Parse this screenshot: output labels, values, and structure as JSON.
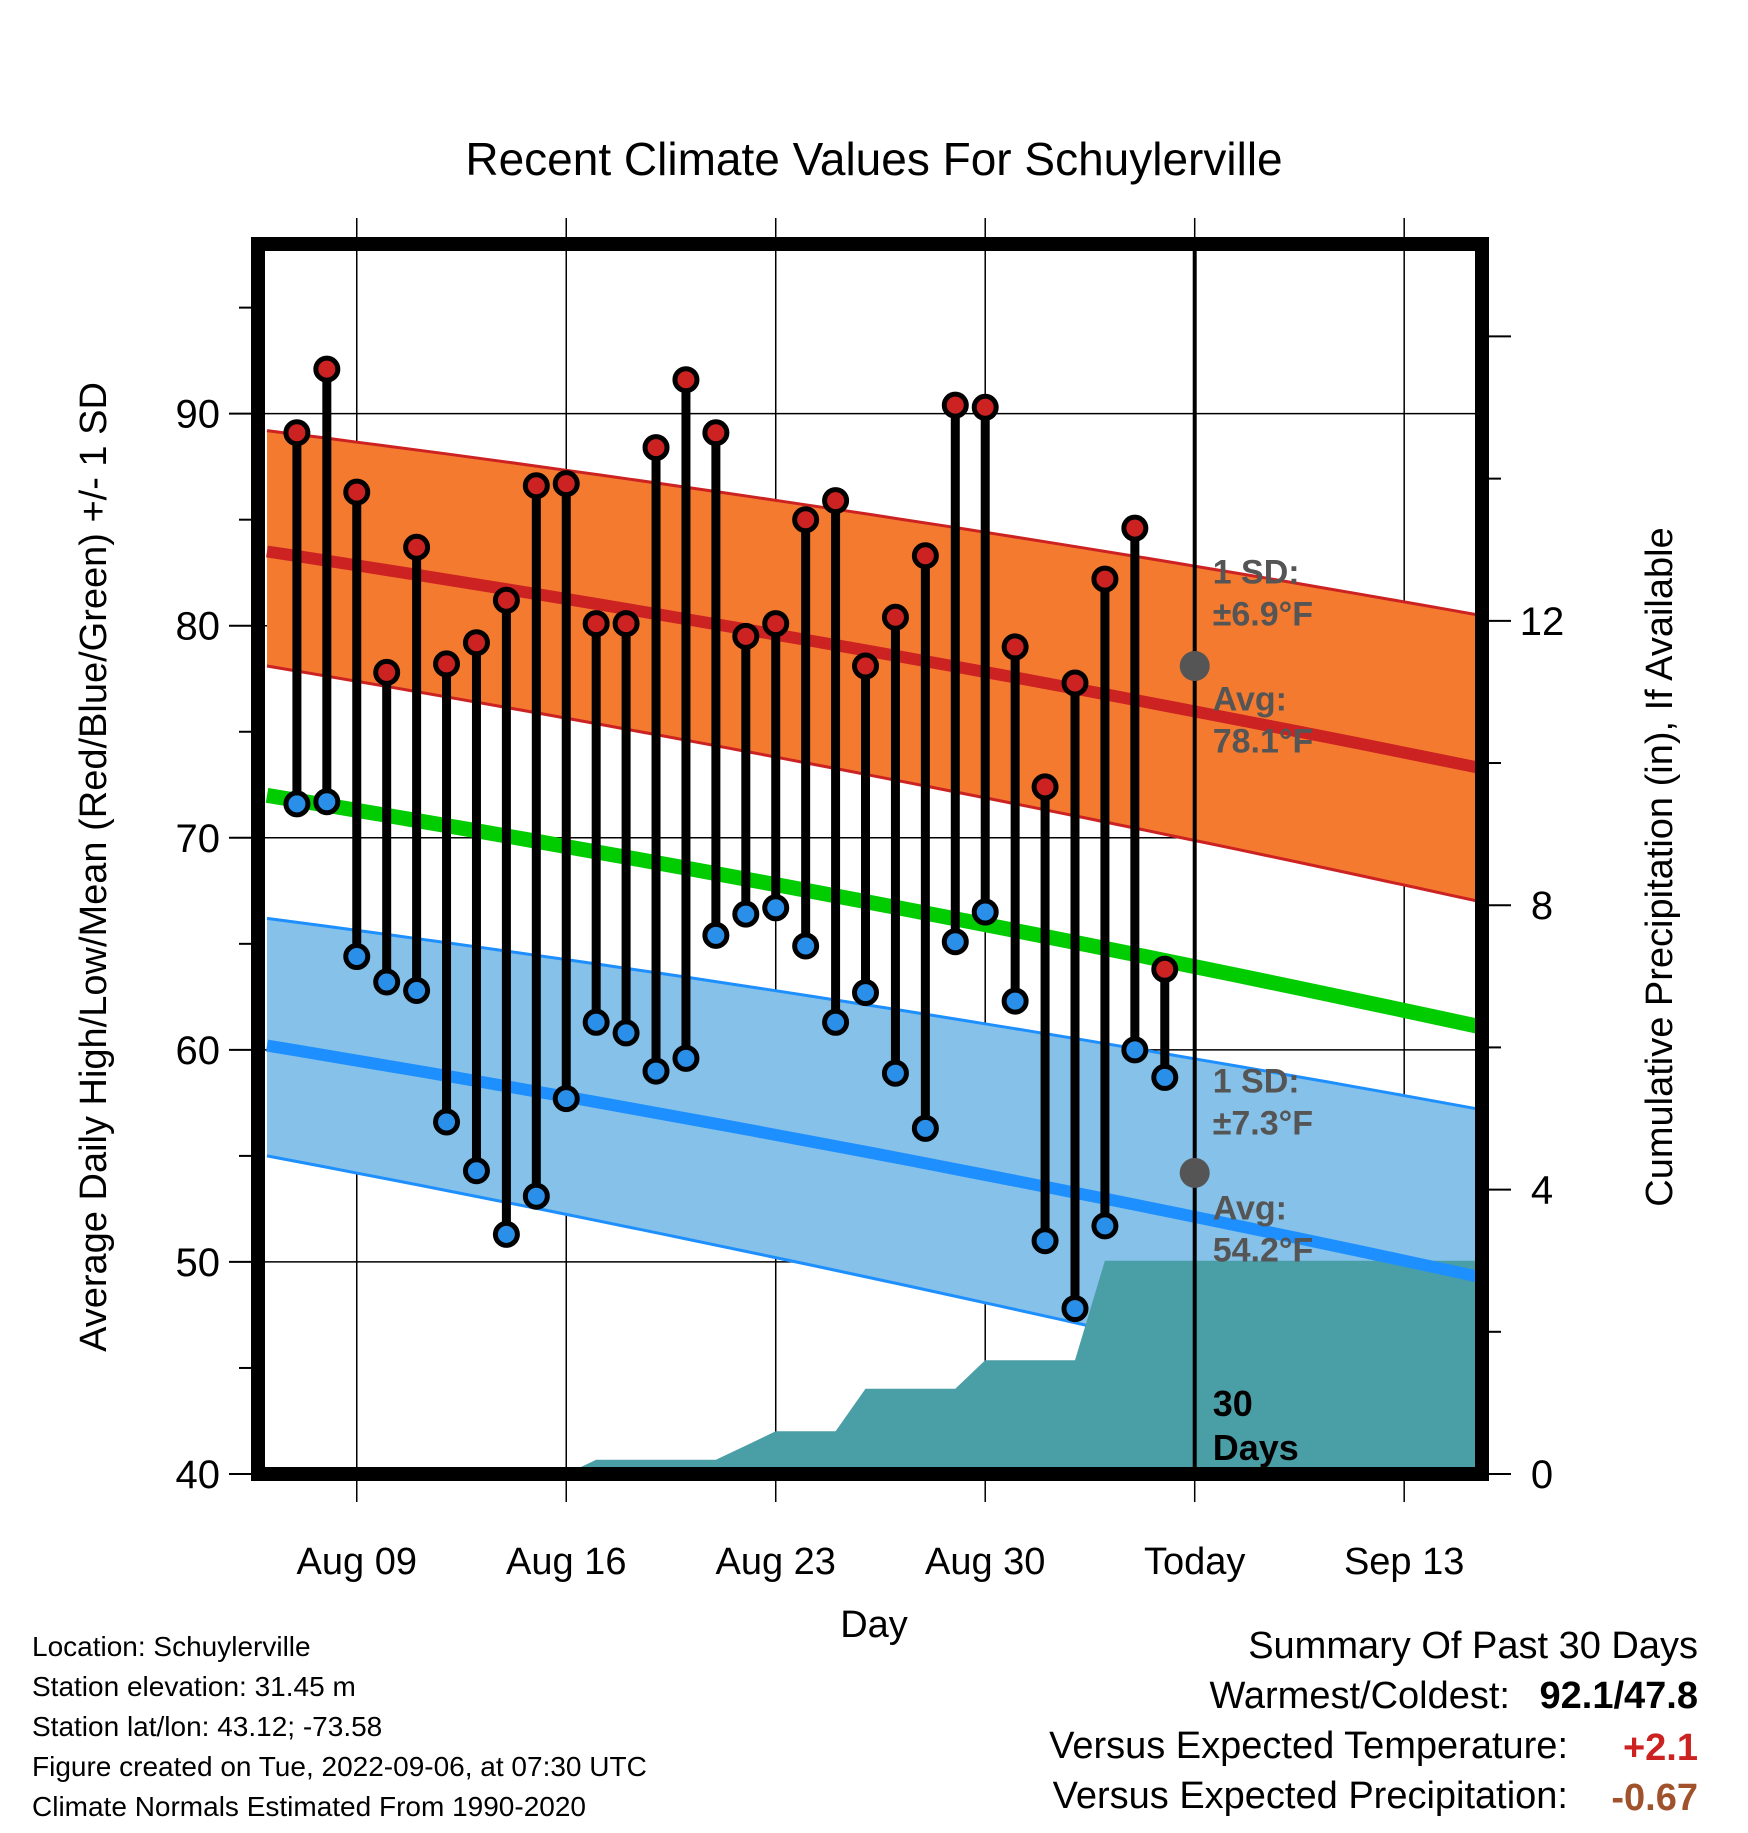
{
  "chart_data": {
    "type": "line",
    "title": "Recent Climate Values For Schuylerville",
    "xlabel": "Day",
    "ylabel": "Average Daily High/Low/Mean (Red/Blue/Green) +/- 1 SD",
    "y2label": "Cumulative Precipitation (in), If Available",
    "ylim": [
      40,
      98
    ],
    "y2lim": [
      0,
      17.3
    ],
    "yticks": [
      40,
      50,
      60,
      70,
      80,
      90
    ],
    "y2ticks": [
      0,
      4,
      8,
      12
    ],
    "xticks": [
      {
        "day": 9,
        "label": "Aug 09"
      },
      {
        "day": 16,
        "label": "Aug 16"
      },
      {
        "day": 23,
        "label": "Aug 23"
      },
      {
        "day": 30,
        "label": "Aug 30"
      },
      {
        "day": 37,
        "label": "Today"
      },
      {
        "day": 44,
        "label": "Sep 13"
      }
    ],
    "xlim": [
      5.7,
      46.6
    ],
    "today_day": 37,
    "grid": true,
    "days": [
      "Aug 07",
      "Aug 08",
      "Aug 09",
      "Aug 10",
      "Aug 11",
      "Aug 12",
      "Aug 13",
      "Aug 14",
      "Aug 15",
      "Aug 16",
      "Aug 17",
      "Aug 18",
      "Aug 19",
      "Aug 20",
      "Aug 21",
      "Aug 22",
      "Aug 23",
      "Aug 24",
      "Aug 25",
      "Aug 26",
      "Aug 27",
      "Aug 28",
      "Aug 29",
      "Aug 30",
      "Aug 31",
      "Sep 01",
      "Sep 02",
      "Sep 03",
      "Sep 04",
      "Sep 05"
    ],
    "day_index": [
      7,
      8,
      9,
      10,
      11,
      12,
      13,
      14,
      15,
      16,
      17,
      18,
      19,
      20,
      21,
      22,
      23,
      24,
      25,
      26,
      27,
      28,
      29,
      30,
      31,
      32,
      33,
      34,
      35,
      36
    ],
    "series": [
      {
        "name": "High",
        "color": "#cc2222",
        "values": [
          89.1,
          92.1,
          86.3,
          77.8,
          83.7,
          78.2,
          79.2,
          81.2,
          86.6,
          86.7,
          80.1,
          80.1,
          88.4,
          91.6,
          89.1,
          79.5,
          80.1,
          85.0,
          85.9,
          78.1,
          80.4,
          83.3,
          90.4,
          90.3,
          79.0,
          72.4,
          77.3,
          82.2,
          84.6,
          63.8
        ]
      },
      {
        "name": "Low",
        "color": "#2a8fe8",
        "values": [
          71.6,
          71.7,
          64.4,
          63.2,
          62.8,
          56.6,
          54.3,
          51.3,
          53.1,
          57.7,
          61.3,
          60.8,
          59.0,
          59.6,
          65.4,
          66.4,
          66.7,
          64.9,
          61.3,
          62.7,
          58.9,
          56.3,
          65.1,
          66.5,
          62.3,
          51.0,
          47.8,
          51.7,
          60.0,
          58.7
        ]
      }
    ],
    "normals": {
      "x": [
        6,
        46.5
      ],
      "high_mean": [
        83.5,
        74.8
      ],
      "high_upper": [
        89.2,
        82.0
      ],
      "high_lower": [
        78.1,
        68.5
      ],
      "mean": [
        72.0,
        62.6
      ],
      "low_mean": [
        60.2,
        50.8
      ],
      "low_upper": [
        66.2,
        58.7
      ],
      "low_lower": [
        55.0,
        44.2
      ]
    },
    "precip": {
      "x": [
        6,
        16,
        17,
        21,
        22,
        23,
        25,
        26,
        29,
        30,
        33,
        34,
        46.5
      ],
      "values": [
        0,
        0,
        0.2,
        0.2,
        0.4,
        0.6,
        0.6,
        1.2,
        1.2,
        1.6,
        1.6,
        3.0,
        3.0
      ]
    },
    "annotations": [
      {
        "label1": "1 SD:",
        "label2": "±6.9°F",
        "label1_key": "high_sd_label",
        "label2_key": "high_sd_value",
        "y": 82.0
      },
      {
        "label1": "Avg:",
        "label2": "78.1°F",
        "label1_key": "high_avg_label",
        "label2_key": "high_avg_value",
        "y": 76.0
      },
      {
        "label1": "1 SD:",
        "label2": "±7.3°F",
        "label1_key": "low_sd_label",
        "label2_key": "low_sd_value",
        "y": 58.0
      },
      {
        "label1": "Avg:",
        "label2": "54.2°F",
        "label1_key": "low_avg_label",
        "label2_key": "low_avg_value",
        "y": 52.0
      }
    ],
    "today_high_avg": 78.1,
    "today_low_avg": 54.2,
    "precip_days_label1": "30",
    "precip_days_label2": "Days",
    "colors": {
      "high_band": "#f47a30",
      "high_line": "#cc2222",
      "mean_line": "#00cc00",
      "low_band": "#85c1e8",
      "low_line": "#1e8fff",
      "precip": "#4a9ea6",
      "marker_high": "#cc2222",
      "marker_low": "#2a8fe8",
      "annotation_text": "#555555"
    }
  },
  "footer": {
    "location": "Location: Schuylerville",
    "elevation": "Station elevation: 31.45 m",
    "latlon": "Station lat/lon: 43.12; -73.58",
    "created": "Figure created on Tue, 2022-09-06, at 07:30 UTC",
    "normals": "Climate Normals Estimated From 1990-2020"
  },
  "summary": {
    "title": "Summary Of Past 30 Days",
    "warm_label": "Warmest/Coldest:",
    "warm_value": "92.1/47.8",
    "temp_label": "Versus Expected Temperature:",
    "temp_value": "+2.1",
    "temp_color": "#cc2222",
    "precip_label": "Versus Expected Precipitation:",
    "precip_value": "-0.67",
    "precip_color": "#a0522d"
  }
}
